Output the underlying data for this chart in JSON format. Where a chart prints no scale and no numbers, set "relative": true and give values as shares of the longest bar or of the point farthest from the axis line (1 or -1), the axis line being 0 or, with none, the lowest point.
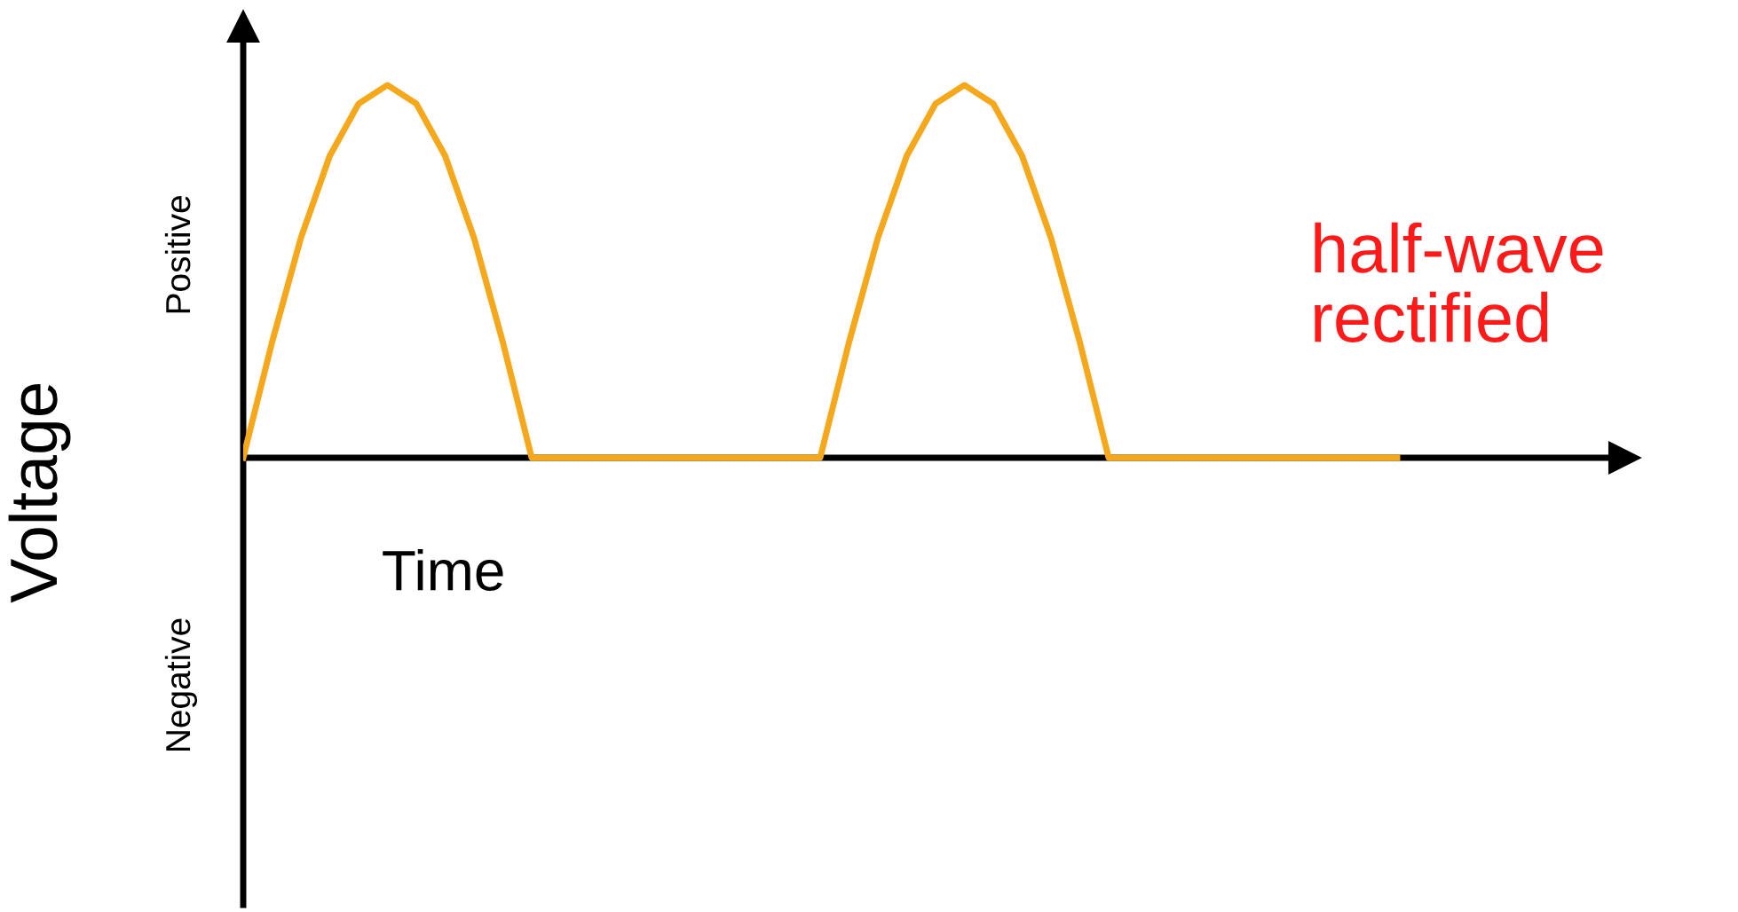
{
  "chart_data": {
    "type": "line",
    "relative": true,
    "color": "#f5a81c",
    "ylabel": "Voltage",
    "xlabel": "Time",
    "annotations": [
      "Positive",
      "Negative",
      "half-wave\nrectified"
    ],
    "categories": [
      null,
      null,
      null,
      null,
      null,
      null,
      null,
      null,
      null,
      null,
      null,
      null,
      null,
      null,
      null,
      null,
      null,
      null,
      null,
      null,
      null,
      null,
      null,
      null,
      null,
      null,
      null,
      null,
      null,
      null,
      null,
      null,
      null,
      null,
      null,
      null,
      null,
      null,
      null,
      null,
      null
    ],
    "values": [
      0,
      0.31,
      0.59,
      0.81,
      0.95,
      1,
      0.95,
      0.81,
      0.59,
      0.31,
      0,
      0,
      0,
      0,
      0,
      0,
      0,
      0,
      0,
      0,
      0,
      0.31,
      0.59,
      0.81,
      0.95,
      1,
      0.95,
      0.81,
      0.59,
      0.31,
      0,
      0,
      0,
      0,
      0,
      0,
      0,
      0,
      0,
      0,
      0
    ],
    "grid": false,
    "legend": false,
    "marker": "none",
    "line_style": "solid"
  }
}
